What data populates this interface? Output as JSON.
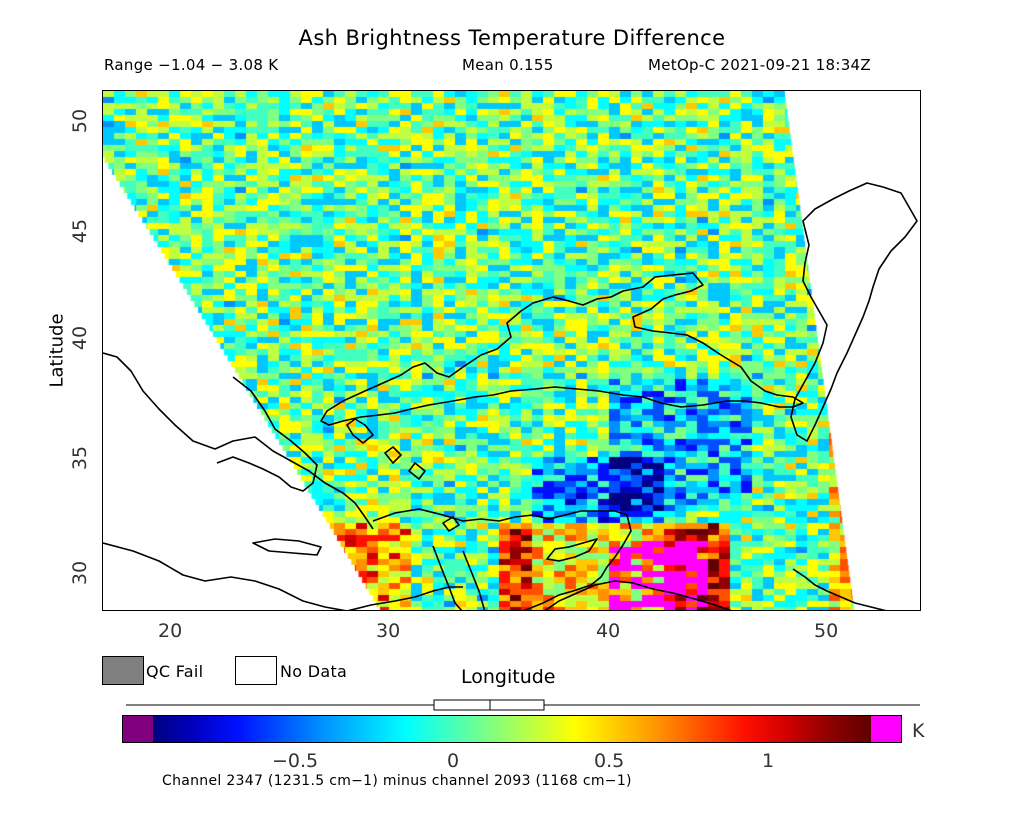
{
  "title": "Ash Brightness Temperature Difference",
  "header": {
    "range": "Range −1.04 − 3.08 K",
    "mean": "Mean 0.155",
    "satellite": "MetOp-C 2021-09-21 18:34Z"
  },
  "axes": {
    "x_label": "Longitude",
    "y_label": "Latitude",
    "x_ticks": [
      "20",
      "30",
      "40",
      "50"
    ],
    "y_ticks": [
      "50",
      "45",
      "40",
      "35",
      "30"
    ],
    "x_range": [
      16.6,
      54.2
    ],
    "y_range": [
      28.2,
      51.3
    ]
  },
  "legend": {
    "qc_fail_label": "QC Fail",
    "no_data_label": "No Data",
    "qc_fail_color": "#808080",
    "no_data_color": "#ffffff"
  },
  "colorbar": {
    "unit": "K",
    "tick_labels": [
      "−0.5",
      "0",
      "0.5",
      "1"
    ],
    "tick_values": [
      -0.5,
      0,
      0.5,
      1
    ],
    "range": [
      -0.94,
      1.3
    ],
    "under_color": "#800080",
    "over_color": "#ff00ff",
    "colors": [
      "#000080",
      "#0000c0",
      "#0010ff",
      "#0050ff",
      "#0090ff",
      "#00c8ff",
      "#00ffff",
      "#40ffc0",
      "#80ff80",
      "#c0ff40",
      "#ffff00",
      "#ffc800",
      "#ff9000",
      "#ff5000",
      "#ff1000",
      "#d00000",
      "#900000",
      "#600000"
    ]
  },
  "caption": "Channel 2347 (1231.5 cm−1) minus channel 2093 (1168 cm−1)"
}
